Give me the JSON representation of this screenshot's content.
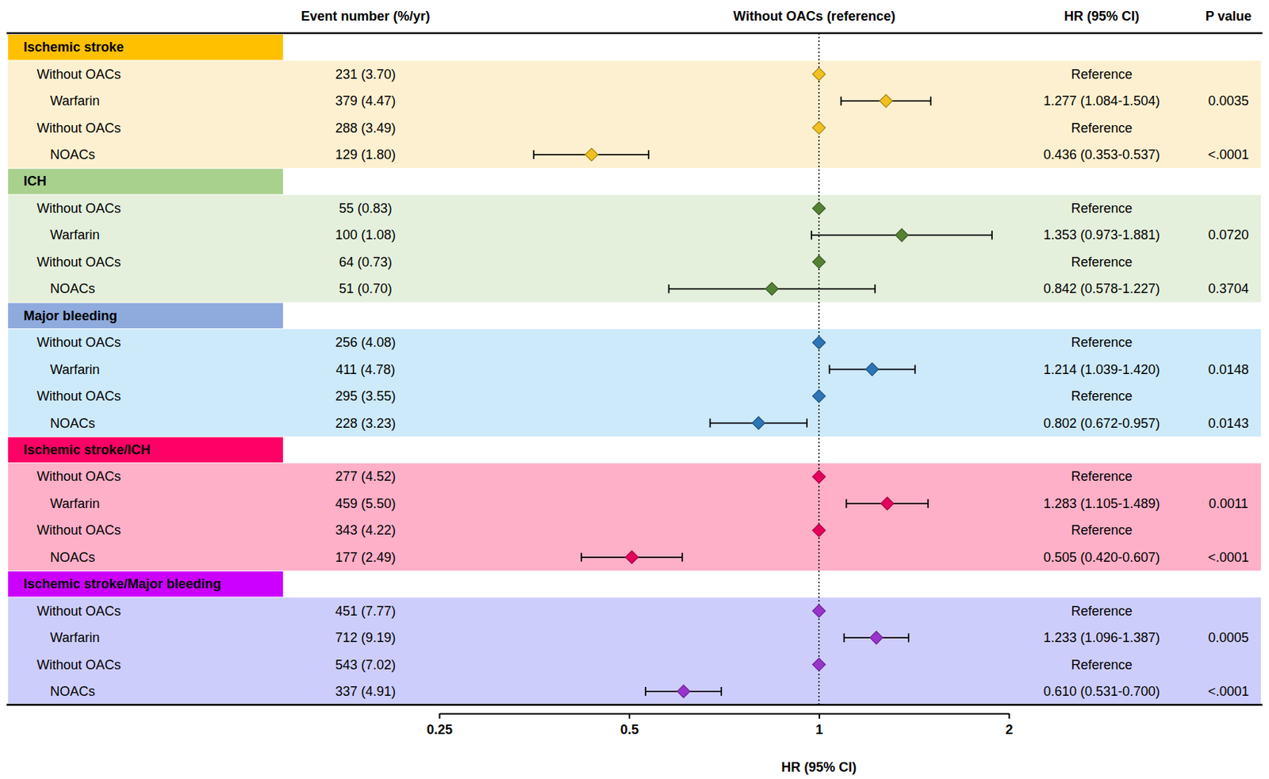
{
  "chart_data": {
    "type": "forest",
    "column_headers": [
      "Event number (%/yr)",
      "Without OACs (reference)",
      "HR (95% CI)",
      "P value"
    ],
    "xlabel": "HR (95% CI)",
    "log": "x",
    "xlim": [
      0.25,
      2
    ],
    "xticks": [
      0.25,
      0.5,
      1,
      2
    ],
    "reference": 1,
    "groups": [
      {
        "name": "Ischemic stroke",
        "color": "#f0c020",
        "rows": [
          {
            "label": "Without OACs",
            "events": "231 (3.70)",
            "hr": 1,
            "hr_label": "Reference"
          },
          {
            "label": "Warfarin",
            "events": "379 (4.47)",
            "hr": 1.277,
            "ci": [
              1.084,
              1.504
            ],
            "hr_label": "1.277 (1.084-1.504)",
            "p": "0.0035"
          },
          {
            "label": "Without OACs",
            "events": "288 (3.49)",
            "hr": 1,
            "hr_label": "Reference"
          },
          {
            "label": "NOACs",
            "events": "129 (1.80)",
            "hr": 0.436,
            "ci": [
              0.353,
              0.537
            ],
            "hr_label": "0.436 (0.353-0.537)",
            "p": "<.0001"
          }
        ]
      },
      {
        "name": "ICH",
        "color": "#548235",
        "rows": [
          {
            "label": "Without OACs",
            "events": "55 (0.83)",
            "hr": 1,
            "hr_label": "Reference"
          },
          {
            "label": "Warfarin",
            "events": "100 (1.08)",
            "hr": 1.353,
            "ci": [
              0.973,
              1.881
            ],
            "hr_label": "1.353 (0.973-1.881)",
            "p": "0.0720"
          },
          {
            "label": "Without OACs",
            "events": "64 (0.73)",
            "hr": 1,
            "hr_label": "Reference"
          },
          {
            "label": "NOACs",
            "events": "51 (0.70)",
            "hr": 0.842,
            "ci": [
              0.578,
              1.227
            ],
            "hr_label": "0.842 (0.578-1.227)",
            "p": "0.3704"
          }
        ]
      },
      {
        "name": "Major bleeding",
        "color": "#2e75b6",
        "rows": [
          {
            "label": "Without OACs",
            "events": "256 (4.08)",
            "hr": 1,
            "hr_label": "Reference"
          },
          {
            "label": "Warfarin",
            "events": "411 (4.78)",
            "hr": 1.214,
            "ci": [
              1.039,
              1.42
            ],
            "hr_label": "1.214 (1.039-1.420)",
            "p": "0.0148"
          },
          {
            "label": "Without OACs",
            "events": "295 (3.55)",
            "hr": 1,
            "hr_label": "Reference"
          },
          {
            "label": "NOACs",
            "events": "228 (3.23)",
            "hr": 0.802,
            "ci": [
              0.672,
              0.957
            ],
            "hr_label": "0.802 (0.672-0.957)",
            "p": "0.0143"
          }
        ]
      },
      {
        "name": "Ischemic stroke/ICH",
        "color": "#e6005c",
        "rows": [
          {
            "label": "Without OACs",
            "events": "277 (4.52)",
            "hr": 1,
            "hr_label": "Reference"
          },
          {
            "label": "Warfarin",
            "events": "459 (5.50)",
            "hr": 1.283,
            "ci": [
              1.105,
              1.489
            ],
            "hr_label": "1.283 (1.105-1.489)",
            "p": "0.0011"
          },
          {
            "label": "Without OACs",
            "events": "343 (4.22)",
            "hr": 1,
            "hr_label": "Reference"
          },
          {
            "label": "NOACs",
            "events": "177 (2.49)",
            "hr": 0.505,
            "ci": [
              0.42,
              0.607
            ],
            "hr_label": "0.505 (0.420-0.607)",
            "p": "<.0001"
          }
        ]
      },
      {
        "name": "Ischemic stroke/Major bleeding",
        "color": "#9933cc",
        "rows": [
          {
            "label": "Without OACs",
            "events": "451 (7.77)",
            "hr": 1,
            "hr_label": "Reference"
          },
          {
            "label": "Warfarin",
            "events": "712 (9.19)",
            "hr": 1.233,
            "ci": [
              1.096,
              1.387
            ],
            "hr_label": "1.233 (1.096-1.387)",
            "p": "0.0005"
          },
          {
            "label": "Without OACs",
            "events": "543 (7.02)",
            "hr": 1,
            "hr_label": "Reference"
          },
          {
            "label": "NOACs",
            "events": "337 (4.91)",
            "hr": 0.61,
            "ci": [
              0.531,
              0.7
            ],
            "hr_label": "0.610 (0.531-0.700)",
            "p": "<.0001"
          }
        ]
      }
    ]
  }
}
